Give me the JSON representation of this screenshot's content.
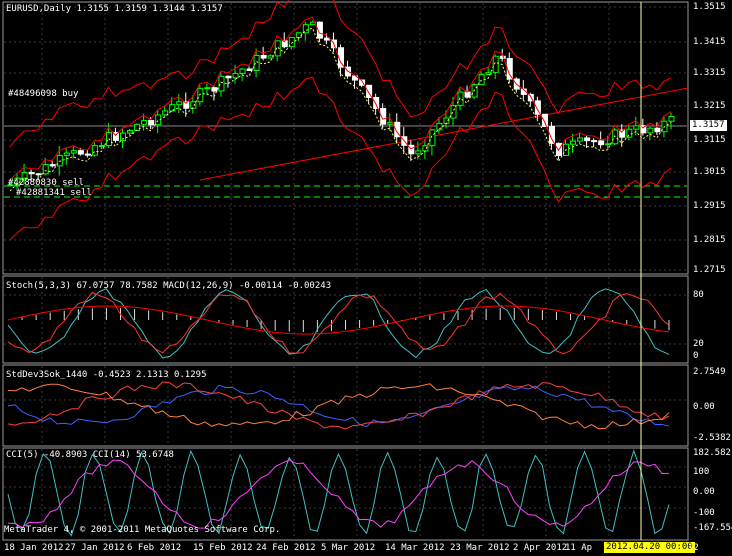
{
  "main": {
    "title": "EURUSD,Daily  1.3155 1.3159 1.3144 1.3157",
    "current_price": "1.3157",
    "price_ticks": [
      "1.3515",
      "1.3415",
      "1.3315",
      "1.3215",
      "1.3115",
      "1.3015",
      "1.2915",
      "1.2815",
      "1.2715"
    ],
    "order_labels": [
      "#48496098 buy",
      "#42880830 sell",
      "#42881341 sell"
    ],
    "colors": {
      "bull": "#00ff00",
      "bear": "#ffffff",
      "band": "#ff0000",
      "ma": "#ffff66",
      "grid": "#3a3a3a"
    }
  },
  "stoch": {
    "label": "Stoch(5,3,3) 67.0757 78.7582  MACD(12,26,9) -0.00114 -0.00243",
    "ticks": [
      "80",
      "20",
      "0"
    ]
  },
  "stddev": {
    "label": "StdDev3Sok_1440 -0.4523 2.1313 0.1295",
    "ticks": [
      "2.7549",
      "0.00",
      "-2.5382"
    ]
  },
  "cci": {
    "label": "CCI(5) -40.8903  CCI(14) 53.6748",
    "ticks": [
      "182.582",
      "100",
      "0.00",
      "-100",
      "-167.5546"
    ]
  },
  "footer": {
    "copyright": "MetaTrader 4, © 2001-2011 MetaQuotes Software Corp.",
    "dates": [
      "18 Jan 2012",
      "27 Jan 2012",
      "6 Feb 2012",
      "15 Feb 2012",
      "24 Feb 2012",
      "5 Mar 2012",
      "14 Mar 2012",
      "23 Mar 2012",
      "2 Apr 2012",
      "11 Ap"
    ],
    "cursor_date": "2012.04.20 00:00",
    "last_tick": "12"
  }
}
